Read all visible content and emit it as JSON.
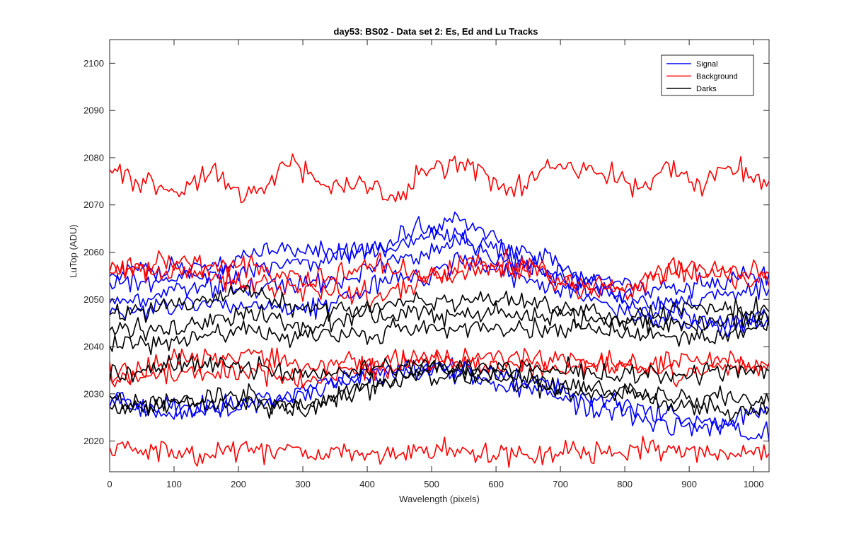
{
  "chart_data": {
    "type": "line",
    "title": "day53: BS02 - Data set 2: Es, Ed and Lu Tracks",
    "xlabel": "Wavelength (pixels)",
    "ylabel": "LuTop (ADU)",
    "xlim": [
      0,
      1024
    ],
    "ylim": [
      2013.5,
      2105
    ],
    "xticks": [
      0,
      100,
      200,
      300,
      400,
      500,
      600,
      700,
      800,
      900,
      1000
    ],
    "yticks": [
      2020,
      2030,
      2040,
      2050,
      2060,
      2070,
      2080,
      2090,
      2100
    ],
    "grid": false,
    "legend_position": "top-right",
    "legend": [
      {
        "name": "Signal",
        "color": "#0000ff"
      },
      {
        "name": "Background",
        "color": "#ff0000"
      },
      {
        "name": "Darks",
        "color": "#000000"
      }
    ],
    "x_step": 4,
    "series": [
      {
        "group": "Signal",
        "color": "#0000ff",
        "noise": 1.1,
        "seed": 11,
        "anchors": [
          [
            0,
            2055
          ],
          [
            150,
            2057
          ],
          [
            280,
            2061
          ],
          [
            400,
            2060
          ],
          [
            500,
            2066
          ],
          [
            550,
            2066
          ],
          [
            650,
            2060
          ],
          [
            750,
            2054
          ],
          [
            850,
            2052
          ],
          [
            1024,
            2055
          ]
        ]
      },
      {
        "group": "Signal",
        "color": "#0000ff",
        "noise": 1.1,
        "seed": 12,
        "anchors": [
          [
            0,
            2053
          ],
          [
            150,
            2055
          ],
          [
            300,
            2058
          ],
          [
            420,
            2061
          ],
          [
            520,
            2063
          ],
          [
            650,
            2057
          ],
          [
            750,
            2052
          ],
          [
            850,
            2049
          ],
          [
            1024,
            2052
          ]
        ]
      },
      {
        "group": "Signal",
        "color": "#0000ff",
        "noise": 1.1,
        "seed": 13,
        "anchors": [
          [
            0,
            2050
          ],
          [
            150,
            2052
          ],
          [
            300,
            2053
          ],
          [
            450,
            2058
          ],
          [
            560,
            2062
          ],
          [
            700,
            2055
          ],
          [
            850,
            2048
          ],
          [
            950,
            2045
          ],
          [
            1024,
            2047
          ]
        ]
      },
      {
        "group": "Signal",
        "color": "#0000ff",
        "noise": 1.1,
        "seed": 14,
        "anchors": [
          [
            0,
            2047
          ],
          [
            150,
            2049
          ],
          [
            300,
            2048
          ],
          [
            450,
            2054
          ],
          [
            560,
            2058
          ],
          [
            700,
            2052
          ],
          [
            850,
            2046
          ],
          [
            950,
            2044
          ],
          [
            1024,
            2045
          ]
        ]
      },
      {
        "group": "Signal",
        "color": "#0000ff",
        "noise": 1.1,
        "seed": 15,
        "anchors": [
          [
            0,
            2029
          ],
          [
            100,
            2027
          ],
          [
            200,
            2028
          ],
          [
            300,
            2030
          ],
          [
            420,
            2035
          ],
          [
            520,
            2036
          ],
          [
            650,
            2033
          ],
          [
            750,
            2029
          ],
          [
            850,
            2026
          ],
          [
            950,
            2024
          ],
          [
            1024,
            2026
          ]
        ]
      },
      {
        "group": "Signal",
        "color": "#0000ff",
        "noise": 1.1,
        "seed": 16,
        "anchors": [
          [
            0,
            2028
          ],
          [
            100,
            2026
          ],
          [
            250,
            2029
          ],
          [
            400,
            2034
          ],
          [
            520,
            2035
          ],
          [
            650,
            2031
          ],
          [
            750,
            2027
          ],
          [
            880,
            2023
          ],
          [
            1024,
            2022
          ]
        ]
      },
      {
        "group": "Background",
        "color": "#ff0000",
        "noise": 1.2,
        "seed": 21,
        "anchors": [
          [
            0,
            2077
          ],
          [
            60,
            2075
          ],
          [
            110,
            2073
          ],
          [
            160,
            2076
          ],
          [
            220,
            2072
          ],
          [
            280,
            2079
          ],
          [
            340,
            2074
          ],
          [
            410,
            2074
          ],
          [
            440,
            2071
          ],
          [
            500,
            2078
          ],
          [
            560,
            2078
          ],
          [
            620,
            2073
          ],
          [
            700,
            2078
          ],
          [
            760,
            2077
          ],
          [
            820,
            2074
          ],
          [
            870,
            2078
          ],
          [
            920,
            2074
          ],
          [
            960,
            2078
          ],
          [
            1024,
            2075
          ]
        ]
      },
      {
        "group": "Background",
        "color": "#ff0000",
        "noise": 1.2,
        "seed": 22,
        "anchors": [
          [
            0,
            2057
          ],
          [
            100,
            2058
          ],
          [
            200,
            2057
          ],
          [
            260,
            2055
          ],
          [
            330,
            2054
          ],
          [
            420,
            2057
          ],
          [
            500,
            2055
          ],
          [
            560,
            2058
          ],
          [
            620,
            2056
          ],
          [
            660,
            2057
          ],
          [
            720,
            2053
          ],
          [
            800,
            2052
          ],
          [
            880,
            2057
          ],
          [
            960,
            2055
          ],
          [
            1024,
            2056
          ]
        ]
      },
      {
        "group": "Background",
        "color": "#ff0000",
        "noise": 1.2,
        "seed": 23,
        "anchors": [
          [
            0,
            2056
          ],
          [
            100,
            2056
          ],
          [
            200,
            2054
          ],
          [
            300,
            2052
          ],
          [
            420,
            2051
          ],
          [
            500,
            2054
          ],
          [
            580,
            2057
          ],
          [
            640,
            2058
          ],
          [
            720,
            2052
          ],
          [
            800,
            2053
          ],
          [
            900,
            2056
          ],
          [
            1024,
            2054
          ]
        ]
      },
      {
        "group": "Background",
        "color": "#ff0000",
        "noise": 1.2,
        "seed": 24,
        "anchors": [
          [
            0,
            2034
          ],
          [
            100,
            2037
          ],
          [
            200,
            2038
          ],
          [
            300,
            2036
          ],
          [
            400,
            2037
          ],
          [
            500,
            2037
          ],
          [
            600,
            2038
          ],
          [
            700,
            2037
          ],
          [
            800,
            2036
          ],
          [
            900,
            2037
          ],
          [
            1024,
            2036
          ]
        ]
      },
      {
        "group": "Background",
        "color": "#ff0000",
        "noise": 1.2,
        "seed": 25,
        "anchors": [
          [
            0,
            2033
          ],
          [
            100,
            2034
          ],
          [
            200,
            2035
          ],
          [
            300,
            2033
          ],
          [
            400,
            2035
          ],
          [
            500,
            2037
          ],
          [
            600,
            2036
          ],
          [
            700,
            2035
          ],
          [
            800,
            2036
          ],
          [
            900,
            2034
          ],
          [
            1024,
            2036
          ]
        ]
      },
      {
        "group": "Background",
        "color": "#ff0000",
        "noise": 1.2,
        "seed": 26,
        "anchors": [
          [
            0,
            2019
          ],
          [
            100,
            2017
          ],
          [
            200,
            2018
          ],
          [
            300,
            2017
          ],
          [
            400,
            2017
          ],
          [
            500,
            2018
          ],
          [
            600,
            2017
          ],
          [
            700,
            2017
          ],
          [
            800,
            2018
          ],
          [
            900,
            2018
          ],
          [
            1024,
            2018
          ]
        ]
      },
      {
        "group": "Darks",
        "color": "#000000",
        "noise": 1.1,
        "seed": 31,
        "anchors": [
          [
            0,
            2048
          ],
          [
            100,
            2048
          ],
          [
            200,
            2052
          ],
          [
            300,
            2048
          ],
          [
            400,
            2048
          ],
          [
            500,
            2050
          ],
          [
            600,
            2050
          ],
          [
            700,
            2048
          ],
          [
            800,
            2046
          ],
          [
            900,
            2048
          ],
          [
            1024,
            2048
          ]
        ]
      },
      {
        "group": "Darks",
        "color": "#000000",
        "noise": 1.1,
        "seed": 32,
        "anchors": [
          [
            0,
            2044
          ],
          [
            100,
            2044
          ],
          [
            200,
            2047
          ],
          [
            300,
            2044
          ],
          [
            400,
            2046
          ],
          [
            500,
            2047
          ],
          [
            600,
            2047
          ],
          [
            700,
            2046
          ],
          [
            800,
            2045
          ],
          [
            900,
            2045
          ],
          [
            1024,
            2046
          ]
        ]
      },
      {
        "group": "Darks",
        "color": "#000000",
        "noise": 1.1,
        "seed": 33,
        "anchors": [
          [
            0,
            2040
          ],
          [
            100,
            2041
          ],
          [
            200,
            2043
          ],
          [
            300,
            2042
          ],
          [
            400,
            2043
          ],
          [
            500,
            2044
          ],
          [
            600,
            2044
          ],
          [
            700,
            2044
          ],
          [
            800,
            2043
          ],
          [
            900,
            2042
          ],
          [
            1024,
            2044
          ]
        ]
      },
      {
        "group": "Darks",
        "color": "#000000",
        "noise": 1.1,
        "seed": 34,
        "anchors": [
          [
            0,
            2034
          ],
          [
            100,
            2036
          ],
          [
            200,
            2036
          ],
          [
            300,
            2034
          ],
          [
            400,
            2036
          ],
          [
            500,
            2036
          ],
          [
            600,
            2036
          ],
          [
            700,
            2035
          ],
          [
            800,
            2034
          ],
          [
            900,
            2034
          ],
          [
            1024,
            2035
          ]
        ]
      },
      {
        "group": "Darks",
        "color": "#000000",
        "noise": 1.1,
        "seed": 35,
        "anchors": [
          [
            0,
            2028
          ],
          [
            100,
            2029
          ],
          [
            200,
            2030
          ],
          [
            300,
            2027
          ],
          [
            400,
            2032
          ],
          [
            500,
            2036
          ],
          [
            600,
            2035
          ],
          [
            700,
            2032
          ],
          [
            800,
            2031
          ],
          [
            900,
            2029
          ],
          [
            1024,
            2029
          ]
        ]
      },
      {
        "group": "Darks",
        "color": "#000000",
        "noise": 1.1,
        "seed": 36,
        "anchors": [
          [
            0,
            2027
          ],
          [
            100,
            2028
          ],
          [
            200,
            2028
          ],
          [
            300,
            2027
          ],
          [
            400,
            2031
          ],
          [
            500,
            2034
          ],
          [
            600,
            2033
          ],
          [
            700,
            2031
          ],
          [
            800,
            2030
          ],
          [
            900,
            2027
          ],
          [
            1024,
            2026
          ]
        ]
      }
    ]
  }
}
